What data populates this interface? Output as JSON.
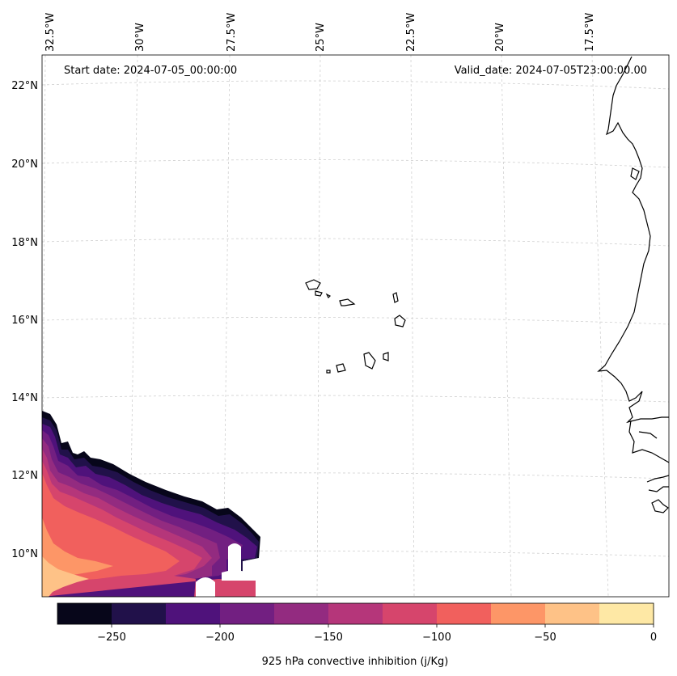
{
  "header": {
    "start_date": "Start date: 2024-07-05_00:00:00",
    "valid_date": "Valid_date: 2024-07-05T23:00:00.00"
  },
  "axes": {
    "lon_labels": [
      "32.5°W",
      "30°W",
      "27.5°W",
      "25°W",
      "22.5°W",
      "20°W",
      "17.5°W"
    ],
    "lat_labels": [
      "22°N",
      "20°N",
      "18°N",
      "16°N",
      "14°N",
      "12°N",
      "10°N"
    ]
  },
  "colorbar": {
    "label": "925 hPa convective inhibition (j/Kg)",
    "ticks": [
      "−250",
      "−200",
      "−150",
      "−100",
      "−50",
      "0"
    ],
    "colors": [
      "#07061a",
      "#21114a",
      "#4f127b",
      "#721f81",
      "#932b80",
      "#b5367a",
      "#d6456c",
      "#f1605d",
      "#fd9667",
      "#fec287",
      "#fee8a5"
    ]
  }
}
